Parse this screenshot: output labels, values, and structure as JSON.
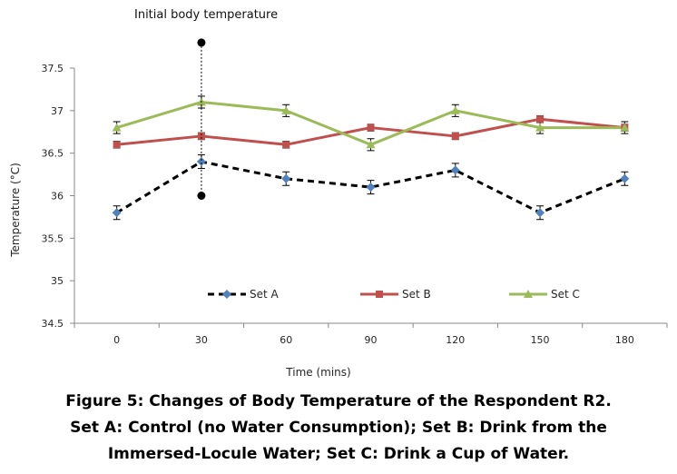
{
  "chart_data": {
    "type": "line",
    "annotation": "Initial body temperature",
    "xlabel": "Time (mins)",
    "ylabel": "Temperature (°C)",
    "x": [
      0,
      30,
      60,
      90,
      120,
      150,
      180
    ],
    "x_tick_labels": [
      "0",
      "30",
      "60",
      "90",
      "120",
      "150",
      "180"
    ],
    "ylim": [
      34.5,
      37.5
    ],
    "y_ticks": [
      34.5,
      35,
      35.5,
      36,
      36.5,
      37,
      37.5
    ],
    "y_tick_labels": [
      "34.5",
      "35",
      "35.5",
      "36",
      "36.5",
      "37",
      "37.5"
    ],
    "grid": false,
    "legend_position": "inside-bottom",
    "error_bars": true,
    "series": [
      {
        "name": "Set A",
        "values": [
          35.8,
          36.4,
          36.2,
          36.1,
          36.3,
          35.8,
          36.2
        ],
        "error": [
          0.08,
          0.08,
          0.08,
          0.08,
          0.08,
          0.08,
          0.08
        ],
        "color": "#4f81bd",
        "line_color": "#000000",
        "line_style": "dashed",
        "marker": "diamond"
      },
      {
        "name": "Set B",
        "values": [
          36.6,
          36.7,
          36.6,
          36.8,
          36.7,
          36.9,
          36.8
        ],
        "error": [
          0.04,
          0.04,
          0.04,
          0.04,
          0.04,
          0.04,
          0.04
        ],
        "color": "#c0504d",
        "line_style": "solid",
        "marker": "square"
      },
      {
        "name": "Set C",
        "values": [
          36.8,
          37.1,
          37.0,
          36.6,
          37.0,
          36.8,
          36.8
        ],
        "error": [
          0.07,
          0.07,
          0.07,
          0.07,
          0.07,
          0.07,
          0.07
        ],
        "color": "#9bbb59",
        "line_style": "solid",
        "marker": "triangle"
      }
    ],
    "reference_marker": {
      "x": 30,
      "y_top": 37.8,
      "y_bottom": 36.0
    }
  },
  "caption": {
    "line1": "Figure 5: Changes of Body Temperature of the Respondent R2.",
    "line2": "Set A: Control (no Water Consumption); Set B: Drink from the",
    "line3": "Immersed-Locule Water; Set C: Drink a Cup of Water."
  }
}
